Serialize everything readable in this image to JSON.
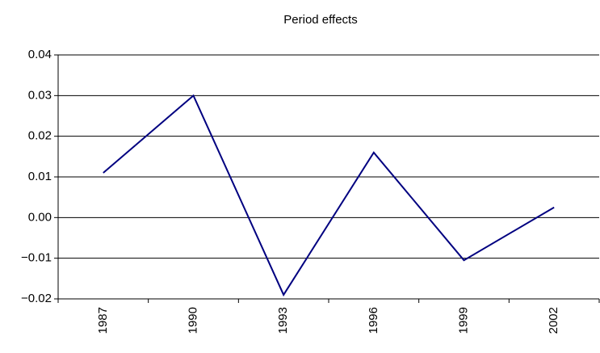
{
  "chart_data": {
    "type": "line",
    "title": "Period effects",
    "categories": [
      "1987",
      "1990",
      "1993",
      "1996",
      "1999",
      "2002"
    ],
    "series": [
      {
        "name": "Period effects",
        "color": "#000080",
        "values": [
          0.011,
          0.03,
          -0.019,
          0.016,
          -0.0105,
          0.0025
        ]
      }
    ],
    "ylim": [
      -0.02,
      0.04
    ],
    "yticks": [
      {
        "value": -0.02,
        "label": "−0.02"
      },
      {
        "value": -0.01,
        "label": "−0.01"
      },
      {
        "value": 0,
        "label": "0.00"
      },
      0.01,
      0.02,
      0.03,
      0.04
    ],
    "grid": true
  }
}
